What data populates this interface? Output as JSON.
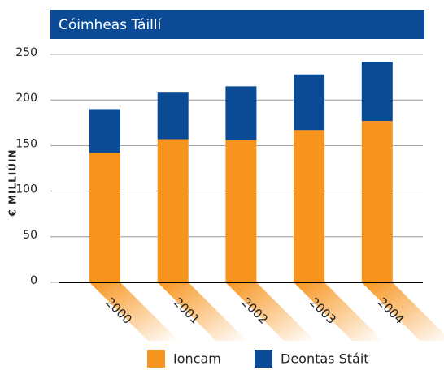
{
  "chart_data": {
    "type": "stacked_bar",
    "title": "Cóimheas Táillí",
    "y_label": "€ MILLIÚIN",
    "categories": [
      "2000",
      "2001",
      "2002",
      "2003",
      "2004"
    ],
    "series": [
      {
        "name": "Ioncam",
        "color": "#f7941d",
        "values": [
          142,
          157,
          156,
          167,
          177
        ]
      },
      {
        "name": "Deontas Stáit",
        "color": "#0b4b96",
        "values": [
          48,
          51,
          59,
          61,
          65
        ]
      }
    ],
    "ylim": [
      0,
      250
    ],
    "yticks": [
      0,
      50,
      100,
      150,
      200,
      250
    ],
    "grid": true,
    "legend": "bottom"
  }
}
